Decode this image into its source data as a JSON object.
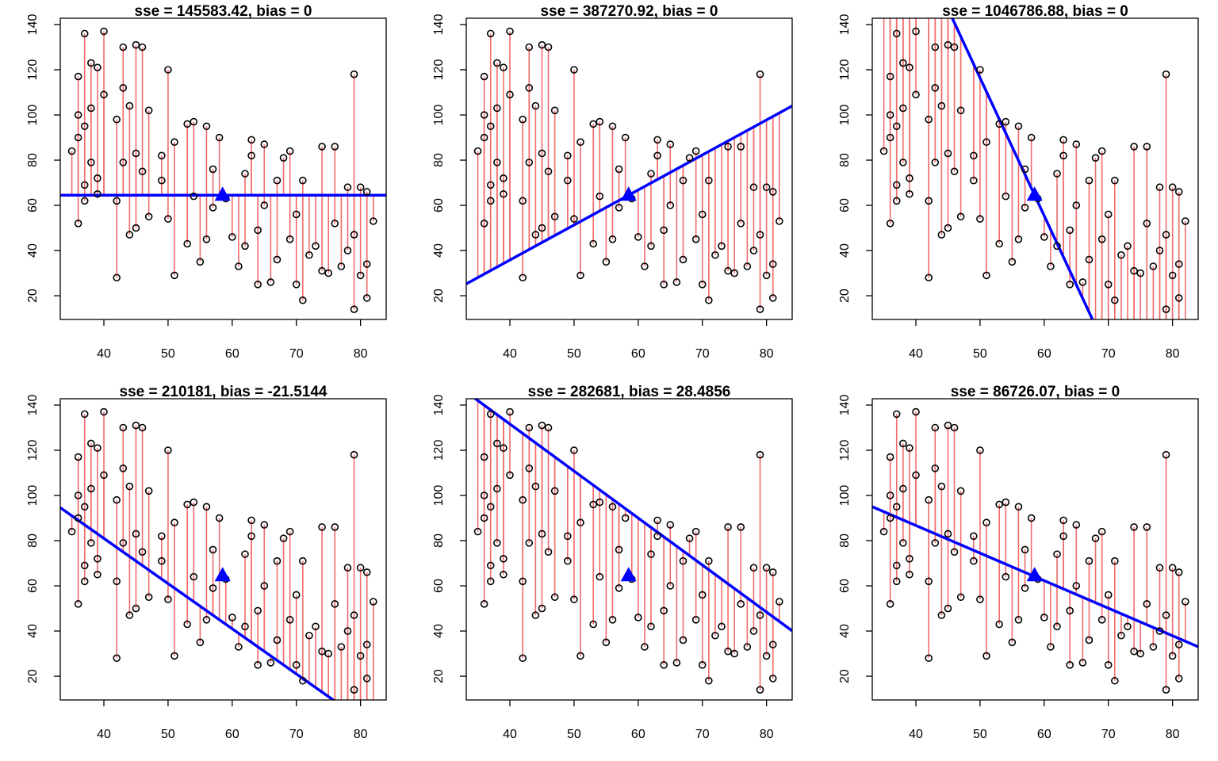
{
  "chart_data": [
    {
      "type": "scatter",
      "title": "sse = 145583.42, bias = 0",
      "x": [
        35,
        36,
        36,
        36,
        36,
        37,
        37,
        37,
        37,
        38,
        38,
        38,
        39,
        39,
        39,
        40,
        40,
        42,
        42,
        42,
        43,
        43,
        43,
        44,
        44,
        45,
        45,
        45,
        46,
        46,
        47,
        47,
        49,
        49,
        50,
        50,
        51,
        51,
        53,
        53,
        54,
        54,
        55,
        56,
        56,
        57,
        57,
        58,
        59,
        60,
        61,
        62,
        62,
        63,
        63,
        64,
        64,
        65,
        65,
        66,
        67,
        67,
        68,
        69,
        69,
        70,
        70,
        71,
        71,
        72,
        73,
        74,
        74,
        75,
        76,
        76,
        77,
        78,
        78,
        79,
        79,
        79,
        80,
        80,
        81,
        81,
        81,
        82
      ],
      "y": [
        84,
        52,
        117,
        100,
        90,
        136,
        95,
        69,
        62,
        123,
        103,
        79,
        121,
        65,
        72,
        137,
        109,
        98,
        28,
        62,
        130,
        112,
        79,
        104,
        47,
        131,
        83,
        50,
        130,
        75,
        102,
        55,
        82,
        71,
        120,
        54,
        88,
        29,
        96,
        43,
        97,
        64,
        35,
        95,
        45,
        76,
        59,
        90,
        63,
        46,
        33,
        74,
        42,
        89,
        82,
        25,
        49,
        87,
        60,
        26,
        71,
        36,
        81,
        84,
        45,
        25,
        56,
        18,
        71,
        38,
        42,
        86,
        31,
        30,
        86,
        52,
        33,
        68,
        40,
        118,
        47,
        14,
        68,
        29,
        66,
        19,
        34,
        53
      ],
      "line": {
        "slope": 0,
        "intercept": 64.5
      },
      "centroid": {
        "x": 58.5,
        "y": 64.5
      },
      "color": "#000000",
      "line_color": "#0000ff",
      "residual_color": "#f26b6b",
      "xlim": [
        33.2,
        84
      ],
      "ylim": [
        9.5,
        142.8
      ],
      "xticks": [
        40,
        50,
        60,
        70,
        80
      ],
      "yticks": [
        20,
        40,
        60,
        80,
        100,
        120,
        140
      ]
    },
    {
      "type": "scatter",
      "title": "sse = 387270.92, bias = 0",
      "x": [
        35,
        36,
        36,
        36,
        36,
        37,
        37,
        37,
        37,
        38,
        38,
        38,
        39,
        39,
        39,
        40,
        40,
        42,
        42,
        42,
        43,
        43,
        43,
        44,
        44,
        45,
        45,
        45,
        46,
        46,
        47,
        47,
        49,
        49,
        50,
        50,
        51,
        51,
        53,
        53,
        54,
        54,
        55,
        56,
        56,
        57,
        57,
        58,
        59,
        60,
        61,
        62,
        62,
        63,
        63,
        64,
        64,
        65,
        65,
        66,
        67,
        67,
        68,
        69,
        69,
        70,
        70,
        71,
        71,
        72,
        73,
        74,
        74,
        75,
        76,
        76,
        77,
        78,
        78,
        79,
        79,
        79,
        80,
        80,
        81,
        81,
        81,
        82
      ],
      "y": [
        84,
        52,
        117,
        100,
        90,
        136,
        95,
        69,
        62,
        123,
        103,
        79,
        121,
        65,
        72,
        137,
        109,
        98,
        28,
        62,
        130,
        112,
        79,
        104,
        47,
        131,
        83,
        50,
        130,
        75,
        102,
        55,
        82,
        71,
        120,
        54,
        88,
        29,
        96,
        43,
        97,
        64,
        35,
        95,
        45,
        76,
        59,
        90,
        63,
        46,
        33,
        74,
        42,
        89,
        82,
        25,
        49,
        87,
        60,
        26,
        71,
        36,
        81,
        84,
        45,
        25,
        56,
        18,
        71,
        38,
        42,
        86,
        31,
        30,
        86,
        52,
        33,
        68,
        40,
        118,
        47,
        14,
        68,
        29,
        66,
        19,
        34,
        53
      ],
      "line": {
        "slope": 1.55,
        "intercept": -26.2
      },
      "centroid": {
        "x": 58.5,
        "y": 64.5
      },
      "color": "#000000",
      "line_color": "#0000ff",
      "residual_color": "#f26b6b",
      "xlim": [
        33.2,
        84
      ],
      "ylim": [
        9.5,
        142.8
      ],
      "xticks": [
        40,
        50,
        60,
        70,
        80
      ],
      "yticks": [
        20,
        40,
        60,
        80,
        100,
        120,
        140
      ]
    },
    {
      "type": "scatter",
      "title": "sse = 1046786.88, bias = 0",
      "x": [
        35,
        36,
        36,
        36,
        36,
        37,
        37,
        37,
        37,
        38,
        38,
        38,
        39,
        39,
        39,
        40,
        40,
        42,
        42,
        42,
        43,
        43,
        43,
        44,
        44,
        45,
        45,
        45,
        46,
        46,
        47,
        47,
        49,
        49,
        50,
        50,
        51,
        51,
        53,
        53,
        54,
        54,
        55,
        56,
        56,
        57,
        57,
        58,
        59,
        60,
        61,
        62,
        62,
        63,
        63,
        64,
        64,
        65,
        65,
        66,
        67,
        67,
        68,
        69,
        69,
        70,
        70,
        71,
        71,
        72,
        73,
        74,
        74,
        75,
        76,
        76,
        77,
        78,
        78,
        79,
        79,
        79,
        80,
        80,
        81,
        81,
        81,
        82
      ],
      "y": [
        84,
        52,
        117,
        100,
        90,
        136,
        95,
        69,
        62,
        123,
        103,
        79,
        121,
        65,
        72,
        137,
        109,
        98,
        28,
        62,
        130,
        112,
        79,
        104,
        47,
        131,
        83,
        50,
        130,
        75,
        102,
        55,
        82,
        71,
        120,
        54,
        88,
        29,
        96,
        43,
        97,
        64,
        35,
        95,
        45,
        76,
        59,
        90,
        63,
        46,
        33,
        74,
        42,
        89,
        82,
        25,
        49,
        87,
        60,
        26,
        71,
        36,
        81,
        84,
        45,
        25,
        56,
        18,
        71,
        38,
        42,
        86,
        31,
        30,
        86,
        52,
        33,
        68,
        40,
        118,
        47,
        14,
        68,
        29,
        66,
        19,
        34,
        53
      ],
      "line": {
        "slope": -6.1,
        "intercept": 421.4
      },
      "centroid": {
        "x": 58.5,
        "y": 64.5
      },
      "color": "#000000",
      "line_color": "#0000ff",
      "residual_color": "#f26b6b",
      "xlim": [
        33.2,
        84
      ],
      "ylim": [
        9.5,
        142.8
      ],
      "xticks": [
        40,
        50,
        60,
        70,
        80
      ],
      "yticks": [
        20,
        40,
        60,
        80,
        100,
        120,
        140
      ]
    },
    {
      "type": "scatter",
      "title": "sse = 210181, bias = -21.5144",
      "x": [
        35,
        36,
        36,
        36,
        36,
        37,
        37,
        37,
        37,
        38,
        38,
        38,
        39,
        39,
        39,
        40,
        40,
        42,
        42,
        42,
        43,
        43,
        43,
        44,
        44,
        45,
        45,
        45,
        46,
        46,
        47,
        47,
        49,
        49,
        50,
        50,
        51,
        51,
        53,
        53,
        54,
        54,
        55,
        56,
        56,
        57,
        57,
        58,
        59,
        60,
        61,
        62,
        62,
        63,
        63,
        64,
        64,
        65,
        65,
        66,
        67,
        67,
        68,
        69,
        69,
        70,
        70,
        71,
        71,
        72,
        73,
        74,
        74,
        75,
        76,
        76,
        77,
        78,
        78,
        79,
        79,
        79,
        80,
        80,
        81,
        81,
        81,
        82
      ],
      "y": [
        84,
        52,
        117,
        100,
        90,
        136,
        95,
        69,
        62,
        123,
        103,
        79,
        121,
        65,
        72,
        137,
        109,
        98,
        28,
        62,
        130,
        112,
        79,
        104,
        47,
        131,
        83,
        50,
        130,
        75,
        102,
        55,
        82,
        71,
        120,
        54,
        88,
        29,
        96,
        43,
        97,
        64,
        35,
        95,
        45,
        76,
        59,
        90,
        63,
        46,
        33,
        74,
        42,
        89,
        82,
        25,
        49,
        87,
        60,
        26,
        71,
        36,
        81,
        84,
        45,
        25,
        56,
        18,
        71,
        38,
        42,
        86,
        31,
        30,
        86,
        52,
        33,
        68,
        40,
        118,
        47,
        14,
        68,
        29,
        66,
        19,
        34,
        53
      ],
      "line": {
        "slope": -2,
        "intercept": 161
      },
      "centroid": {
        "x": 58.5,
        "y": 64.5
      },
      "color": "#000000",
      "line_color": "#0000ff",
      "residual_color": "#f26b6b",
      "xlim": [
        33.2,
        84
      ],
      "ylim": [
        9.5,
        142.8
      ],
      "xticks": [
        40,
        50,
        60,
        70,
        80
      ],
      "yticks": [
        20,
        40,
        60,
        80,
        100,
        120,
        140
      ]
    },
    {
      "type": "scatter",
      "title": "sse = 282681, bias = 28.4856",
      "x": [
        35,
        36,
        36,
        36,
        36,
        37,
        37,
        37,
        37,
        38,
        38,
        38,
        39,
        39,
        39,
        40,
        40,
        42,
        42,
        42,
        43,
        43,
        43,
        44,
        44,
        45,
        45,
        45,
        46,
        46,
        47,
        47,
        49,
        49,
        50,
        50,
        51,
        51,
        53,
        53,
        54,
        54,
        55,
        56,
        56,
        57,
        57,
        58,
        59,
        60,
        61,
        62,
        62,
        63,
        63,
        64,
        64,
        65,
        65,
        66,
        67,
        67,
        68,
        69,
        69,
        70,
        70,
        71,
        71,
        72,
        73,
        74,
        74,
        75,
        76,
        76,
        77,
        78,
        78,
        79,
        79,
        79,
        80,
        80,
        81,
        81,
        81,
        82
      ],
      "y": [
        84,
        52,
        117,
        100,
        90,
        136,
        95,
        69,
        62,
        123,
        103,
        79,
        121,
        65,
        72,
        137,
        109,
        98,
        28,
        62,
        130,
        112,
        79,
        104,
        47,
        131,
        83,
        50,
        130,
        75,
        102,
        55,
        82,
        71,
        120,
        54,
        88,
        29,
        96,
        43,
        97,
        64,
        35,
        95,
        45,
        76,
        59,
        90,
        63,
        46,
        33,
        74,
        42,
        89,
        82,
        25,
        49,
        87,
        60,
        26,
        71,
        36,
        81,
        84,
        45,
        25,
        56,
        18,
        71,
        38,
        42,
        86,
        31,
        30,
        86,
        52,
        33,
        68,
        40,
        118,
        47,
        14,
        68,
        29,
        66,
        19,
        34,
        53
      ],
      "line": {
        "slope": -2.08,
        "intercept": 214.8
      },
      "centroid": {
        "x": 58.5,
        "y": 64.5
      },
      "color": "#000000",
      "line_color": "#0000ff",
      "residual_color": "#f26b6b",
      "xlim": [
        33.2,
        84
      ],
      "ylim": [
        9.5,
        142.8
      ],
      "xticks": [
        40,
        50,
        60,
        70,
        80
      ],
      "yticks": [
        20,
        40,
        60,
        80,
        100,
        120,
        140
      ]
    },
    {
      "type": "scatter",
      "title": "sse = 86726.07, bias = 0",
      "x": [
        35,
        36,
        36,
        36,
        36,
        37,
        37,
        37,
        37,
        38,
        38,
        38,
        39,
        39,
        39,
        40,
        40,
        42,
        42,
        42,
        43,
        43,
        43,
        44,
        44,
        45,
        45,
        45,
        46,
        46,
        47,
        47,
        49,
        49,
        50,
        50,
        51,
        51,
        53,
        53,
        54,
        54,
        55,
        56,
        56,
        57,
        57,
        58,
        59,
        60,
        61,
        62,
        62,
        63,
        63,
        64,
        64,
        65,
        65,
        66,
        67,
        67,
        68,
        69,
        69,
        70,
        70,
        71,
        71,
        72,
        73,
        74,
        74,
        75,
        76,
        76,
        77,
        78,
        78,
        79,
        79,
        79,
        80,
        80,
        81,
        81,
        81,
        82
      ],
      "y": [
        84,
        52,
        117,
        100,
        90,
        136,
        95,
        69,
        62,
        123,
        103,
        79,
        121,
        65,
        72,
        137,
        109,
        98,
        28,
        62,
        130,
        112,
        79,
        104,
        47,
        131,
        83,
        50,
        130,
        75,
        102,
        55,
        82,
        71,
        120,
        54,
        88,
        29,
        96,
        43,
        97,
        64,
        35,
        95,
        45,
        76,
        59,
        90,
        63,
        46,
        33,
        74,
        42,
        89,
        82,
        25,
        49,
        87,
        60,
        26,
        71,
        36,
        81,
        84,
        45,
        25,
        56,
        18,
        71,
        38,
        42,
        86,
        31,
        30,
        86,
        52,
        33,
        68,
        40,
        118,
        47,
        14,
        68,
        29,
        66,
        19,
        34,
        53
      ],
      "line": {
        "slope": -1.22,
        "intercept": 135.5
      },
      "centroid": {
        "x": 58.5,
        "y": 64.5
      },
      "color": "#000000",
      "line_color": "#0000ff",
      "residual_color": "#f26b6b",
      "xlim": [
        33.2,
        84
      ],
      "ylim": [
        9.5,
        142.8
      ],
      "xticks": [
        40,
        50,
        60,
        70,
        80
      ],
      "yticks": [
        20,
        40,
        60,
        80,
        100,
        120,
        140
      ]
    }
  ]
}
